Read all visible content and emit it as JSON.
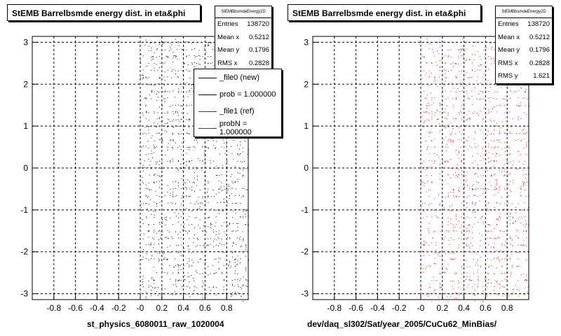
{
  "chart_data": [
    {
      "type": "scatter",
      "title": "StEMB Barrelbsmde energy dist. in eta&phi",
      "xlabel": "st_physics_6080011_raw_1020004",
      "ylabel": "",
      "xlim": [
        -1.0,
        1.0
      ],
      "ylim": [
        -3.14,
        3.14
      ],
      "x_ticks": [
        "-0.8",
        "-0.6",
        "-0.4",
        "-0.2",
        "-0",
        "0.2",
        "0.4",
        "0.6",
        "0.8"
      ],
      "y_ticks": [
        "3",
        "2",
        "1",
        "0",
        "-1",
        "-2",
        "-3"
      ],
      "grid": true,
      "series_color": "#000000",
      "stats": {
        "name": "StEMBbsmdeEnergy2D",
        "rows": [
          {
            "label": "Entries",
            "value": "138720"
          },
          {
            "label": "Mean x",
            "value": "0.5212"
          },
          {
            "label": "Mean y",
            "value": "0.1796"
          },
          {
            "label": "RMS x",
            "value": "0.2828"
          }
        ]
      },
      "legend": [
        {
          "label": "_file0 (new)",
          "color": "#000000"
        },
        {
          "label": "prob = 1.000000",
          "color": "#000000"
        },
        {
          "label": "_file1 (ref)",
          "color": "#cc0000"
        },
        {
          "label": "probN = 1.000000",
          "color": "#cc0000"
        }
      ]
    },
    {
      "type": "scatter",
      "title": "StEMB Barrelbsmde energy dist. in eta&phi",
      "xlabel": "dev/daq_sl302/Sat/year_2005/CuCu62_MinBias/",
      "ylabel": "",
      "xlim": [
        -1.0,
        1.0
      ],
      "ylim": [
        -3.14,
        3.14
      ],
      "x_ticks": [
        "-0.8",
        "-0.6",
        "-0.4",
        "-0.2",
        "-0",
        "0.2",
        "0.4",
        "0.6",
        "0.8"
      ],
      "y_ticks": [
        "3",
        "2",
        "1",
        "0",
        "-1",
        "-2",
        "-3"
      ],
      "grid": true,
      "series_color": "#ee0000",
      "stats": {
        "name": "StEMBbsmdeEnergy2D",
        "rows": [
          {
            "label": "Entries",
            "value": "138720"
          },
          {
            "label": "Mean x",
            "value": "0.5212"
          },
          {
            "label": "Mean y",
            "value": "0.1796"
          },
          {
            "label": "RMS x",
            "value": "0.2828"
          },
          {
            "label": "RMS y",
            "value": "1.621"
          }
        ]
      }
    }
  ]
}
